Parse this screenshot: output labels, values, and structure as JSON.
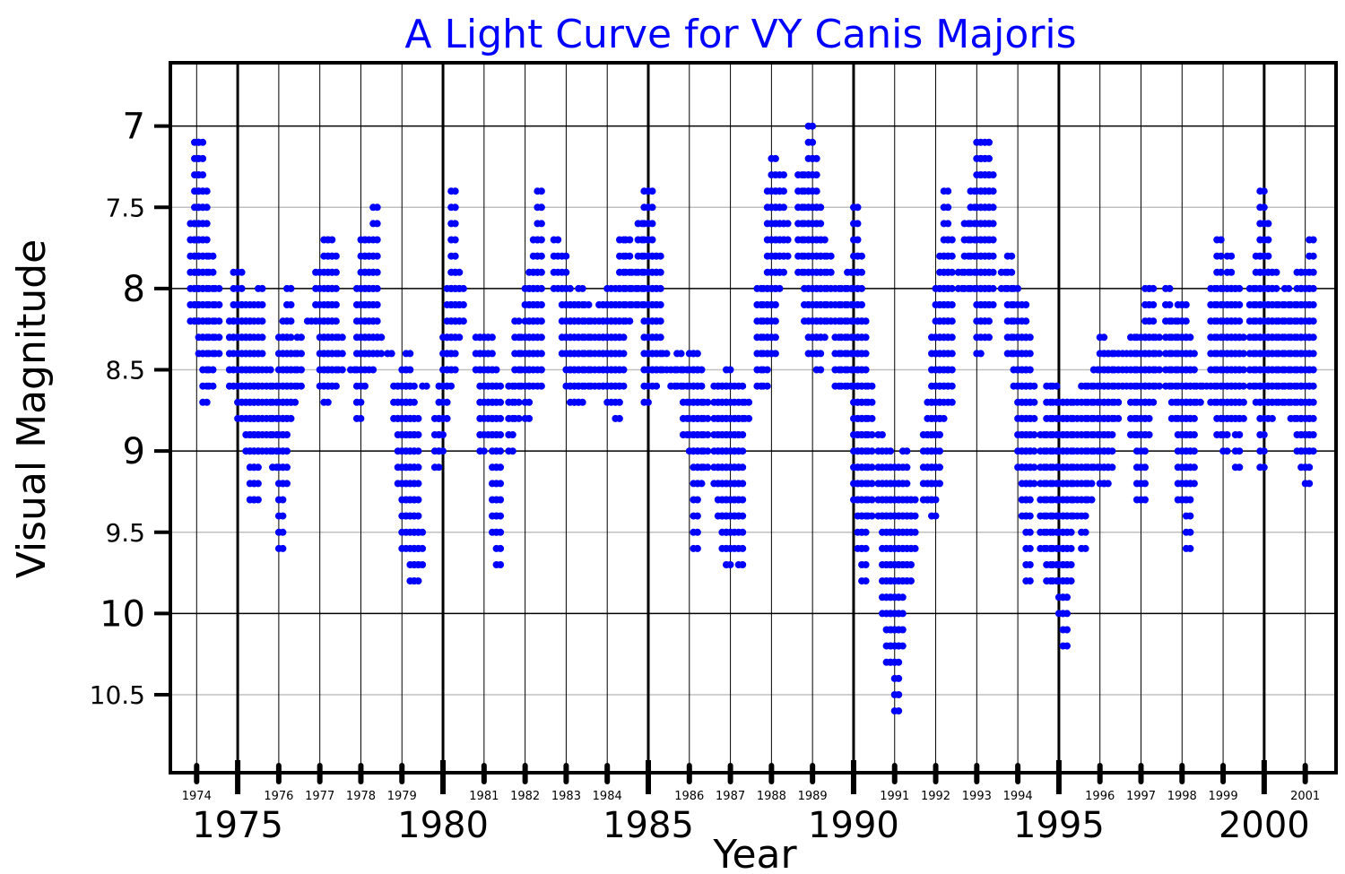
{
  "chart_data": {
    "type": "scatter",
    "title": "A Light Curve for VY Canis Majoris",
    "xlabel": "Year",
    "ylabel": "Visual Magnitude",
    "xlim": [
      1973.36,
      2001.75
    ],
    "ylim": [
      10.98,
      6.61
    ],
    "y_inverted": true,
    "grid": true,
    "y_ticks": [
      "7",
      "7.5",
      "8",
      "8.5",
      "9",
      "9.5",
      "10",
      "10.5"
    ],
    "x_major_ticks": [
      "1975",
      "1980",
      "1985",
      "1990",
      "1995",
      "2000"
    ],
    "x_minor_ticks": [
      "1974",
      "1976",
      "1977",
      "1978",
      "1979",
      "1981",
      "1982",
      "1983",
      "1984",
      "1986",
      "1987",
      "1988",
      "1989",
      "1991",
      "1992",
      "1993",
      "1994",
      "1996",
      "1997",
      "1998",
      "1999",
      "2001"
    ],
    "series_color": "#0000ff",
    "title_color": "#0000ff",
    "magnitude_step": 0.1,
    "columns_note": "each column is [year, brightest magnitude, faintest magnitude]; observations every 0.1 mag",
    "columns": [
      [
        1973.85,
        7.6,
        8.2
      ],
      [
        1973.95,
        7.1,
        8.2
      ],
      [
        1974.05,
        7.1,
        8.4
      ],
      [
        1974.15,
        7.4,
        8.7
      ],
      [
        1974.3,
        7.8,
        8.6
      ],
      [
        1974.45,
        8.0,
        8.4
      ],
      [
        1974.8,
        8.2,
        8.6
      ],
      [
        1974.9,
        7.9,
        8.3
      ],
      [
        1975.0,
        7.9,
        8.8
      ],
      [
        1975.1,
        8.1,
        8.7
      ],
      [
        1975.2,
        8.2,
        9.0
      ],
      [
        1975.3,
        8.1,
        9.3
      ],
      [
        1975.4,
        8.4,
        9.3
      ],
      [
        1975.5,
        8.0,
        9.0
      ],
      [
        1975.7,
        8.5,
        9.0
      ],
      [
        1975.85,
        8.6,
        9.1
      ],
      [
        1976.0,
        8.3,
        9.6
      ],
      [
        1976.1,
        8.2,
        9.2
      ],
      [
        1976.2,
        8.0,
        8.8
      ],
      [
        1976.3,
        8.4,
        8.7
      ],
      [
        1976.45,
        8.3,
        8.6
      ],
      [
        1976.7,
        8.2,
        8.2
      ],
      [
        1976.9,
        7.9,
        8.2
      ],
      [
        1977.0,
        8.2,
        8.6
      ],
      [
        1977.1,
        7.7,
        8.7
      ],
      [
        1977.2,
        7.7,
        8.6
      ],
      [
        1977.3,
        7.8,
        8.6
      ],
      [
        1977.45,
        8.3,
        8.5
      ],
      [
        1977.75,
        8.5,
        8.5
      ],
      [
        1977.9,
        8.0,
        8.8
      ],
      [
        1978.0,
        7.7,
        8.6
      ],
      [
        1978.1,
        7.7,
        8.4
      ],
      [
        1978.2,
        7.8,
        8.5
      ],
      [
        1978.3,
        7.5,
        8.4
      ],
      [
        1978.4,
        8.3,
        8.4
      ],
      [
        1978.65,
        8.4,
        8.4
      ],
      [
        1978.8,
        8.6,
        8.8
      ],
      [
        1978.9,
        8.6,
        9.2
      ],
      [
        1979.0,
        8.5,
        9.6
      ],
      [
        1979.1,
        8.4,
        9.4
      ],
      [
        1979.2,
        8.6,
        9.8
      ],
      [
        1979.3,
        8.8,
        9.8
      ],
      [
        1979.4,
        9.5,
        9.7
      ],
      [
        1979.5,
        8.6,
        8.6
      ],
      [
        1979.8,
        8.8,
        9.1
      ],
      [
        1979.9,
        8.6,
        9.0
      ],
      [
        1980.0,
        8.3,
        8.8
      ],
      [
        1980.1,
        8.0,
        8.6
      ],
      [
        1980.2,
        7.4,
        8.5
      ],
      [
        1980.3,
        7.9,
        8.3
      ],
      [
        1980.4,
        8.0,
        8.2
      ],
      [
        1980.8,
        8.3,
        8.5
      ],
      [
        1980.9,
        8.3,
        9.0
      ],
      [
        1981.0,
        8.3,
        8.7
      ],
      [
        1981.1,
        8.3,
        8.9
      ],
      [
        1981.2,
        8.5,
        9.5
      ],
      [
        1981.3,
        8.6,
        9.7
      ],
      [
        1981.6,
        8.6,
        9.0
      ],
      [
        1981.75,
        8.2,
        8.8
      ],
      [
        1981.9,
        8.3,
        8.6
      ],
      [
        1982.0,
        8.0,
        8.8
      ],
      [
        1982.1,
        7.9,
        8.6
      ],
      [
        1982.2,
        7.7,
        8.4
      ],
      [
        1982.3,
        7.4,
        8.6
      ],
      [
        1982.7,
        7.7,
        8.0
      ],
      [
        1982.9,
        7.8,
        8.4
      ],
      [
        1983.0,
        8.0,
        8.6
      ],
      [
        1983.1,
        8.1,
        8.7
      ],
      [
        1983.2,
        8.1,
        8.7
      ],
      [
        1983.3,
        8.0,
        8.7
      ],
      [
        1983.45,
        8.1,
        8.6
      ],
      [
        1983.6,
        8.2,
        8.6
      ],
      [
        1983.8,
        8.1,
        8.6
      ],
      [
        1983.9,
        8.1,
        8.6
      ],
      [
        1984.0,
        8.0,
        8.7
      ],
      [
        1984.1,
        8.1,
        8.6
      ],
      [
        1984.2,
        8.0,
        8.8
      ],
      [
        1984.3,
        7.7,
        8.6
      ],
      [
        1984.45,
        7.7,
        8.2
      ],
      [
        1984.6,
        7.9,
        8.1
      ],
      [
        1984.75,
        7.6,
        8.1
      ],
      [
        1984.9,
        7.4,
        8.7
      ],
      [
        1985.0,
        7.4,
        8.5
      ],
      [
        1985.1,
        7.8,
        8.6
      ],
      [
        1985.2,
        7.8,
        8.5
      ],
      [
        1985.35,
        8.4,
        8.5
      ],
      [
        1985.55,
        8.5,
        8.6
      ],
      [
        1985.7,
        8.4,
        8.6
      ],
      [
        1985.85,
        8.5,
        8.9
      ],
      [
        1986.0,
        8.4,
        9.0
      ],
      [
        1986.1,
        8.4,
        9.6
      ],
      [
        1986.2,
        8.5,
        9.2
      ],
      [
        1986.35,
        8.7,
        9.1
      ],
      [
        1986.6,
        8.6,
        9.2
      ],
      [
        1986.7,
        8.6,
        9.4
      ],
      [
        1986.8,
        8.6,
        9.6
      ],
      [
        1986.9,
        8.5,
        9.7
      ],
      [
        1987.0,
        8.6,
        9.6
      ],
      [
        1987.1,
        8.8,
        9.4
      ],
      [
        1987.2,
        8.6,
        9.7
      ],
      [
        1987.35,
        8.7,
        8.8
      ],
      [
        1987.65,
        8.0,
        8.6
      ],
      [
        1987.8,
        8.0,
        8.6
      ],
      [
        1987.9,
        7.4,
        8.4
      ],
      [
        1988.0,
        7.2,
        8.4
      ],
      [
        1988.1,
        7.4,
        8.0
      ],
      [
        1988.2,
        7.3,
        7.9
      ],
      [
        1988.3,
        7.6,
        7.8
      ],
      [
        1988.65,
        7.3,
        7.9
      ],
      [
        1988.8,
        7.3,
        8.2
      ],
      [
        1988.9,
        7.0,
        8.4
      ],
      [
        1989.0,
        7.2,
        8.4
      ],
      [
        1989.1,
        7.5,
        8.5
      ],
      [
        1989.2,
        7.7,
        8.3
      ],
      [
        1989.35,
        7.8,
        8.2
      ],
      [
        1989.55,
        8.0,
        8.6
      ],
      [
        1989.7,
        8.0,
        8.6
      ],
      [
        1989.85,
        7.9,
        8.6
      ],
      [
        1990.0,
        7.5,
        9.3
      ],
      [
        1990.1,
        7.8,
        9.6
      ],
      [
        1990.2,
        8.2,
        9.8
      ],
      [
        1990.35,
        8.6,
        9.4
      ],
      [
        1990.6,
        8.9,
        9.4
      ],
      [
        1990.7,
        9.2,
        10.0
      ],
      [
        1990.8,
        9.0,
        10.3
      ],
      [
        1990.9,
        9.2,
        10.3
      ],
      [
        1991.0,
        9.1,
        10.6
      ],
      [
        1991.1,
        9.2,
        10.2
      ],
      [
        1991.2,
        9.0,
        9.8
      ],
      [
        1991.3,
        9.3,
        9.8
      ],
      [
        1991.4,
        9.3,
        9.6
      ],
      [
        1991.7,
        8.9,
        9.3
      ],
      [
        1991.8,
        8.7,
        9.3
      ],
      [
        1991.9,
        8.3,
        9.4
      ],
      [
        1992.0,
        8.0,
        9.2
      ],
      [
        1992.1,
        7.8,
        8.8
      ],
      [
        1992.2,
        7.4,
        8.6
      ],
      [
        1992.3,
        7.7,
        8.7
      ],
      [
        1992.55,
        7.9,
        8.0
      ],
      [
        1992.7,
        7.6,
        8.0
      ],
      [
        1992.85,
        7.4,
        8.0
      ],
      [
        1993.0,
        7.1,
        8.4
      ],
      [
        1993.1,
        7.2,
        8.2
      ],
      [
        1993.2,
        7.1,
        8.3
      ],
      [
        1993.3,
        7.3,
        8.1
      ],
      [
        1993.6,
        7.9,
        8.0
      ],
      [
        1993.75,
        7.8,
        8.4
      ],
      [
        1993.9,
        8.0,
        8.6
      ],
      [
        1994.0,
        8.3,
        9.1
      ],
      [
        1994.1,
        8.1,
        9.4
      ],
      [
        1994.2,
        8.3,
        9.8
      ],
      [
        1994.3,
        8.6,
        9.2
      ],
      [
        1994.55,
        8.9,
        9.6
      ],
      [
        1994.7,
        8.6,
        9.8
      ],
      [
        1994.85,
        8.6,
        9.8
      ],
      [
        1995.0,
        8.7,
        10.0
      ],
      [
        1995.1,
        8.7,
        10.2
      ],
      [
        1995.2,
        8.7,
        9.8
      ],
      [
        1995.35,
        8.7,
        9.4
      ],
      [
        1995.55,
        8.6,
        9.6
      ],
      [
        1995.7,
        8.6,
        9.3
      ],
      [
        1995.85,
        8.5,
        9.1
      ],
      [
        1996.0,
        8.3,
        9.2
      ],
      [
        1996.1,
        8.4,
        9.2
      ],
      [
        1996.2,
        8.4,
        9.1
      ],
      [
        1996.35,
        8.4,
        8.8
      ],
      [
        1996.55,
        8.4,
        8.6
      ],
      [
        1996.75,
        8.3,
        8.9
      ],
      [
        1996.9,
        8.3,
        9.3
      ],
      [
        1997.0,
        8.3,
        9.3
      ],
      [
        1997.1,
        8.0,
        8.9
      ],
      [
        1997.2,
        8.0,
        8.7
      ],
      [
        1997.35,
        8.3,
        8.6
      ],
      [
        1997.6,
        8.0,
        8.6
      ],
      [
        1997.75,
        8.2,
        8.8
      ],
      [
        1997.9,
        8.1,
        9.3
      ],
      [
        1998.0,
        8.1,
        9.3
      ],
      [
        1998.1,
        8.3,
        9.6
      ],
      [
        1998.2,
        8.4,
        9.2
      ],
      [
        1998.35,
        8.6,
        8.7
      ],
      [
        1998.5,
        8.6,
        8.6
      ],
      [
        1998.7,
        8.0,
        8.7
      ],
      [
        1998.85,
        7.7,
        8.9
      ],
      [
        1999.0,
        8.0,
        9.0
      ],
      [
        1999.1,
        7.8,
        8.8
      ],
      [
        1999.2,
        8.0,
        8.8
      ],
      [
        1999.3,
        8.0,
        9.1
      ],
      [
        1999.4,
        8.3,
        8.8
      ],
      [
        1999.65,
        8.0,
        8.6
      ],
      [
        1999.8,
        7.8,
        8.7
      ],
      [
        1999.9,
        7.4,
        9.1
      ],
      [
        2000.0,
        7.6,
        8.7
      ],
      [
        2000.1,
        7.9,
        8.8
      ],
      [
        2000.2,
        7.9,
        8.7
      ],
      [
        2000.35,
        8.1,
        8.7
      ],
      [
        2000.5,
        8.0,
        8.7
      ],
      [
        2000.65,
        8.1,
        8.8
      ],
      [
        2000.8,
        7.9,
        9.0
      ],
      [
        2000.9,
        7.9,
        9.1
      ],
      [
        2001.0,
        8.0,
        9.2
      ],
      [
        2001.1,
        7.7,
        9.0
      ]
    ]
  }
}
